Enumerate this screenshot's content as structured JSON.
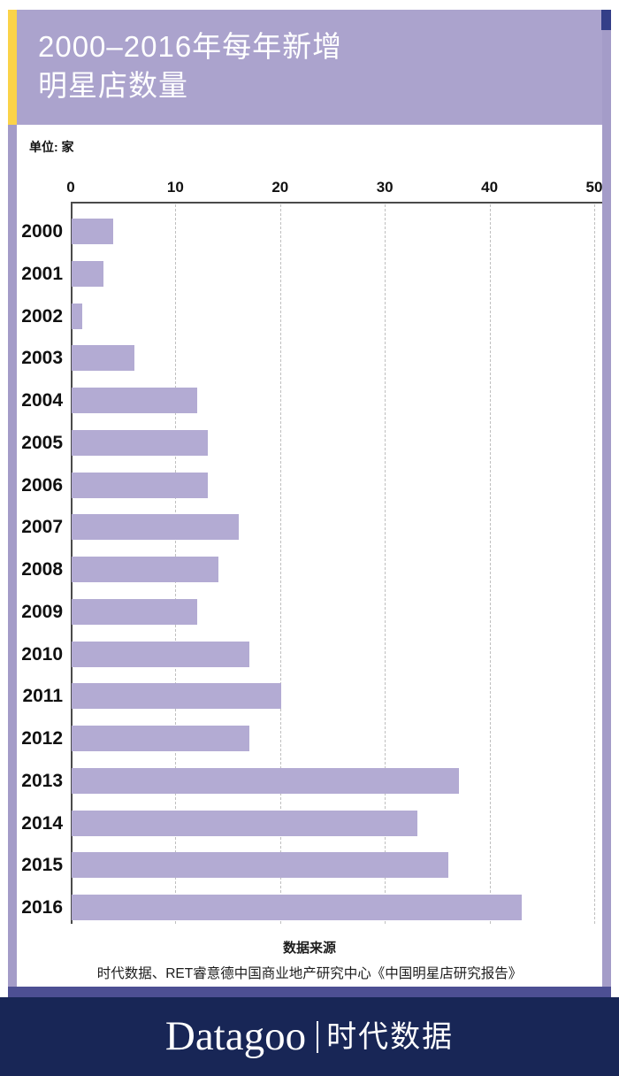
{
  "header": {
    "title_line1": "2000–2016年每年新增",
    "title_line2": "明星店数量",
    "bg_color": "#aba3cd",
    "accent_yellow": "#fbd348",
    "corner_navy": "#343e88",
    "text_color": "#ffffff"
  },
  "chart": {
    "unit_label": "单位: 家"
  },
  "chart_data": {
    "type": "bar",
    "orientation": "horizontal",
    "title": "2000–2016年每年新增明星店数量",
    "unit": "家",
    "categories": [
      "2000",
      "2001",
      "2002",
      "2003",
      "2004",
      "2005",
      "2006",
      "2007",
      "2008",
      "2009",
      "2010",
      "2011",
      "2012",
      "2013",
      "2014",
      "2015",
      "2016"
    ],
    "values": [
      4,
      3,
      1,
      6,
      12,
      13,
      13,
      16,
      14,
      12,
      17,
      20,
      17,
      37,
      33,
      36,
      43
    ],
    "xlim": [
      0,
      50
    ],
    "xticks": [
      0,
      10,
      20,
      30,
      40,
      50
    ],
    "grid": "dashed-vertical",
    "bar_color": "#b3abd3",
    "legend": "none"
  },
  "source": {
    "heading": "数据来源",
    "text": "时代数据、RET睿意德中国商业地产研究中心《中国明星店研究报告》"
  },
  "footer": {
    "logo_latin": "Datagoo",
    "logo_cn": "时代数据",
    "bg_color": "#182656"
  }
}
